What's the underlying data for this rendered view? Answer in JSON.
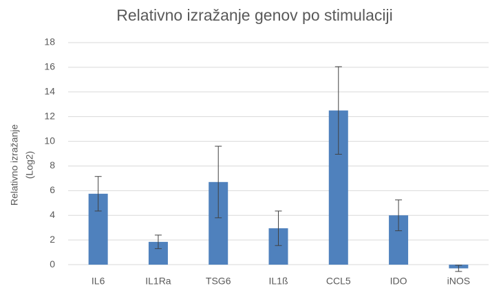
{
  "chart_data": {
    "type": "bar",
    "title": "Relativno izražanje genov po stimulaciji",
    "ylabel": [
      "Relativno izražanje",
      "(Log2)"
    ],
    "categories": [
      "IL6",
      "IL1Ra",
      "TSG6",
      "IL1ß",
      "CCL5",
      "IDO",
      "iNOS"
    ],
    "values": [
      5.75,
      1.85,
      6.7,
      2.95,
      12.5,
      4.0,
      -0.3
    ],
    "errors": [
      1.4,
      0.55,
      2.9,
      1.4,
      3.55,
      1.25,
      0.25
    ],
    "color": "#4f81bd",
    "ylim": [
      -1,
      18
    ],
    "yticks": [
      0,
      2,
      4,
      6,
      8,
      10,
      12,
      14,
      16,
      18
    ],
    "grid": true
  }
}
